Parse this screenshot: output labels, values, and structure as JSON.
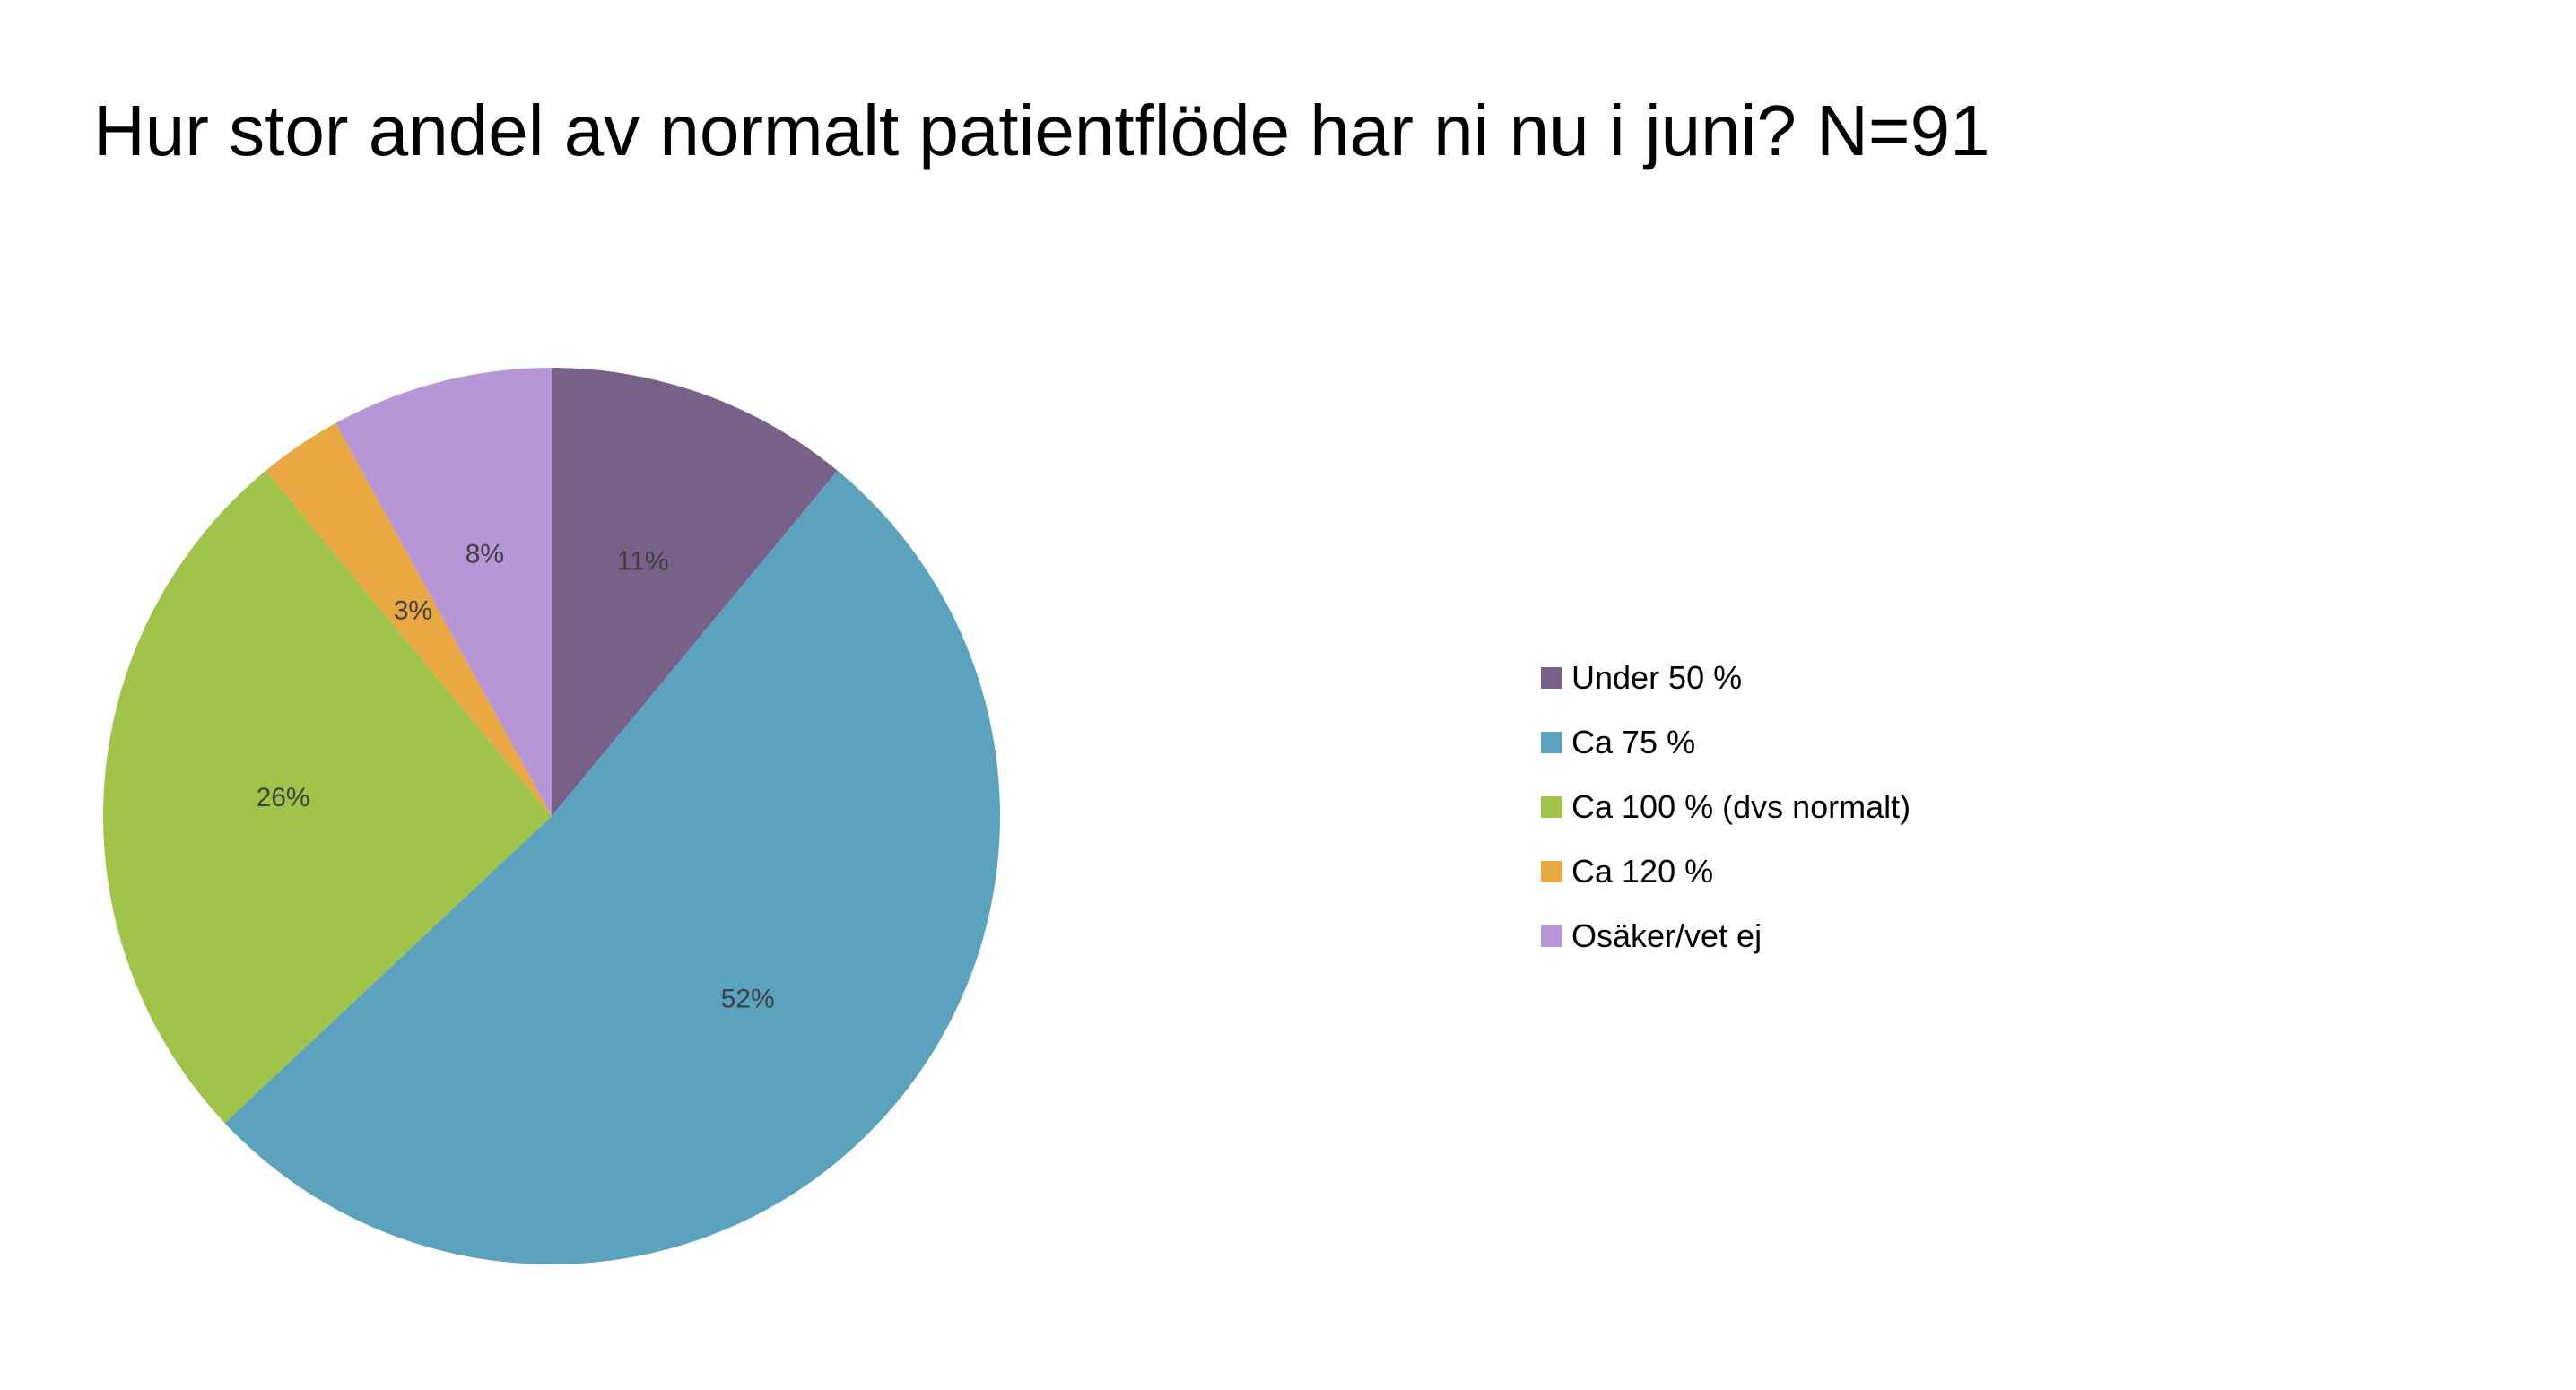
{
  "chart_data": {
    "type": "pie",
    "title": "Hur stor andel av normalt patientflöde har ni nu i juni? N=91",
    "categories": [
      "Under 50 %",
      "Ca 75 %",
      "Ca 100 % (dvs normalt)",
      "Ca 120 %",
      "Osäker/vet ej"
    ],
    "values": [
      11,
      52,
      26,
      3,
      8
    ],
    "labels": [
      "11%",
      "52%",
      "26%",
      "3%",
      "8%"
    ],
    "colors": [
      "#776189",
      "#5BA2BF",
      "#A0C449",
      "#E9A741",
      "#B796D7"
    ],
    "legend_position": "right"
  }
}
